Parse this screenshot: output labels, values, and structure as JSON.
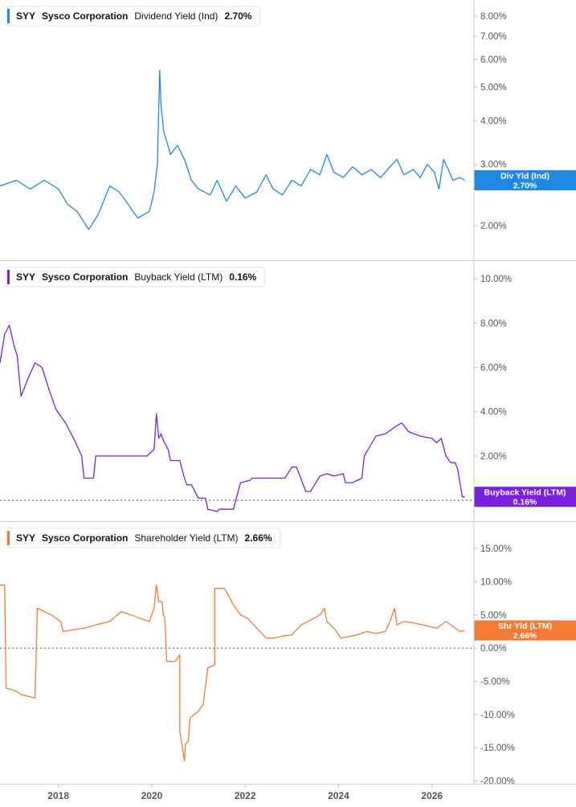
{
  "chart_data": [
    {
      "type": "line",
      "legend": {
        "ticker": "SYY",
        "company": "Sysco Corporation",
        "metric": "Dividend Yield (Ind)",
        "value": "2.70%"
      },
      "color": "#1e88e5",
      "yscale": "log",
      "ylim": [
        1.6,
        8.9
      ],
      "ytick_values": [
        2,
        3,
        4,
        5,
        6,
        7,
        8
      ],
      "ytick_labels": [
        "2.00%",
        "3.00%",
        "4.00%",
        "5.00%",
        "6.00%",
        "7.00%",
        "8.00%"
      ],
      "tag": {
        "line1": "Div Yld (Ind)",
        "line2": "2.70%"
      },
      "reference_line": null,
      "x": [
        2016.75,
        2017.1,
        2017.4,
        2017.7,
        2018.0,
        2018.2,
        2018.4,
        2018.65,
        2018.85,
        2019.1,
        2019.3,
        2019.45,
        2019.7,
        2019.95,
        2020.05,
        2020.12,
        2020.17,
        2020.2,
        2020.26,
        2020.32,
        2020.4,
        2020.55,
        2020.7,
        2020.85,
        2021.0,
        2021.25,
        2021.4,
        2021.6,
        2021.8,
        2022.0,
        2022.25,
        2022.45,
        2022.6,
        2022.8,
        2023.0,
        2023.2,
        2023.4,
        2023.6,
        2023.75,
        2023.9,
        2024.1,
        2024.3,
        2024.5,
        2024.7,
        2024.9,
        2025.1,
        2025.25,
        2025.4,
        2025.6,
        2025.75,
        2025.9,
        2026.05,
        2026.15,
        2026.25,
        2026.35,
        2026.45,
        2026.6,
        2026.7
      ],
      "y": [
        2.6,
        2.7,
        2.55,
        2.7,
        2.55,
        2.3,
        2.2,
        1.95,
        2.15,
        2.6,
        2.5,
        2.35,
        2.1,
        2.2,
        2.5,
        3.0,
        5.6,
        4.4,
        3.7,
        3.5,
        3.2,
        3.4,
        3.1,
        2.7,
        2.55,
        2.45,
        2.7,
        2.35,
        2.6,
        2.4,
        2.5,
        2.8,
        2.55,
        2.45,
        2.7,
        2.6,
        2.9,
        2.8,
        3.2,
        2.85,
        2.75,
        2.95,
        2.8,
        2.9,
        2.75,
        2.95,
        3.1,
        2.8,
        2.9,
        2.75,
        3.0,
        2.85,
        2.55,
        3.1,
        2.9,
        2.7,
        2.75,
        2.7
      ]
    },
    {
      "type": "line",
      "legend": {
        "ticker": "SYY",
        "company": "Sysco Corporation",
        "metric": "Buyback Yield (LTM)",
        "value": "0.16%"
      },
      "color": "#7b1fe0",
      "yscale": "linear",
      "ylim": [
        -0.9,
        10.8
      ],
      "ytick_values": [
        2,
        4,
        6,
        8,
        10
      ],
      "ytick_labels": [
        "2.00%",
        "4.00%",
        "6.00%",
        "8.00%",
        "10.00%"
      ],
      "tag": {
        "line1": "Buyback Yield (LTM)",
        "line2": "0.16%"
      },
      "reference_line": 0,
      "x": [
        2016.75,
        2016.85,
        2016.95,
        2017.05,
        2017.12,
        2017.2,
        2017.35,
        2017.5,
        2017.65,
        2017.8,
        2017.95,
        2018.15,
        2018.35,
        2018.5,
        2018.55,
        2018.75,
        2018.8,
        2019.3,
        2019.55,
        2019.75,
        2019.9,
        2020.05,
        2020.1,
        2020.15,
        2020.2,
        2020.25,
        2020.35,
        2020.4,
        2020.6,
        2020.7,
        2020.75,
        2020.85,
        2021.0,
        2021.15,
        2021.2,
        2021.4,
        2021.45,
        2021.75,
        2021.9,
        2022.1,
        2022.15,
        2022.55,
        2022.8,
        2022.85,
        2023.0,
        2023.1,
        2023.3,
        2023.4,
        2023.6,
        2023.75,
        2023.9,
        2024.1,
        2024.15,
        2024.3,
        2024.5,
        2024.55,
        2024.8,
        2025.0,
        2025.2,
        2025.35,
        2025.5,
        2025.75,
        2026.0,
        2026.1,
        2026.2,
        2026.3,
        2026.4,
        2026.5,
        2026.55,
        2026.65,
        2026.7
      ],
      "y": [
        6.2,
        7.5,
        7.9,
        7.0,
        6.5,
        4.7,
        5.5,
        6.2,
        6.0,
        5.0,
        4.1,
        3.5,
        2.7,
        2.0,
        1.0,
        1.0,
        2.0,
        2.0,
        2.0,
        2.0,
        2.0,
        2.3,
        3.9,
        2.8,
        3.0,
        2.7,
        2.3,
        1.8,
        1.8,
        1.0,
        0.7,
        0.7,
        0.1,
        0.1,
        -0.4,
        -0.5,
        -0.4,
        -0.4,
        0.8,
        0.9,
        1.0,
        1.0,
        1.0,
        1.0,
        1.5,
        1.5,
        0.4,
        0.4,
        1.1,
        1.2,
        1.1,
        1.2,
        0.8,
        0.8,
        1.0,
        2.0,
        2.9,
        3.0,
        3.3,
        3.5,
        3.1,
        2.9,
        2.8,
        2.6,
        2.8,
        2.0,
        1.7,
        1.7,
        1.4,
        0.16,
        0.16
      ]
    },
    {
      "type": "line",
      "legend": {
        "ticker": "SYY",
        "company": "Sysco Corporation",
        "metric": "Shareholder Yield (LTM)",
        "value": "2.66%"
      },
      "color": "#f57a35",
      "yscale": "linear",
      "ylim": [
        -20.3,
        19.0
      ],
      "ytick_values": [
        -20,
        -15,
        -10,
        -5,
        0,
        5,
        10,
        15
      ],
      "ytick_labels": [
        "-20.00%",
        "-15.00%",
        "-10.00%",
        "-5.00%",
        "0.00%",
        "5.00%",
        "10.00%",
        "15.00%"
      ],
      "tag": {
        "line1": "Shr Yld (LTM)",
        "line2": "2.66%"
      },
      "reference_line": 0,
      "x": [
        2016.75,
        2016.85,
        2016.88,
        2017.1,
        2017.2,
        2017.5,
        2017.55,
        2017.85,
        2018.05,
        2018.1,
        2018.35,
        2018.55,
        2018.8,
        2019.1,
        2019.35,
        2019.55,
        2019.95,
        2020.05,
        2020.1,
        2020.15,
        2020.22,
        2020.25,
        2020.28,
        2020.32,
        2020.5,
        2020.6,
        2020.6,
        2020.7,
        2020.72,
        2020.78,
        2020.82,
        2021.0,
        2021.1,
        2021.2,
        2021.35,
        2021.35,
        2021.55,
        2021.6,
        2021.75,
        2021.9,
        2022.05,
        2022.25,
        2022.45,
        2022.6,
        2022.8,
        2023.0,
        2023.2,
        2023.4,
        2023.6,
        2023.7,
        2023.75,
        2023.9,
        2024.05,
        2024.4,
        2024.6,
        2024.8,
        2025.0,
        2025.1,
        2025.2,
        2025.25,
        2025.4,
        2025.6,
        2025.8,
        2026.1,
        2026.3,
        2026.5,
        2026.6,
        2026.7
      ],
      "y": [
        9.5,
        9.5,
        -6.0,
        -6.5,
        -7.0,
        -7.5,
        6.0,
        5.0,
        4.0,
        2.5,
        2.8,
        3.0,
        3.5,
        4.0,
        5.5,
        5.0,
        4.0,
        6.0,
        9.5,
        7.0,
        7.0,
        5.0,
        4.5,
        -2.0,
        -2.0,
        -1.0,
        -12.5,
        -17.0,
        -14.5,
        -14.0,
        -10.5,
        -9.5,
        -8.5,
        -3.0,
        -2.5,
        9.0,
        9.0,
        8.5,
        6.5,
        5.0,
        4.5,
        3.0,
        1.5,
        1.5,
        1.8,
        2.0,
        3.5,
        4.2,
        5.0,
        6.0,
        4.0,
        3.0,
        1.5,
        2.0,
        2.5,
        2.2,
        2.5,
        4.0,
        6.0,
        3.5,
        4.0,
        3.8,
        3.5,
        3.0,
        4.0,
        3.0,
        2.5,
        2.66
      ]
    }
  ],
  "x_axis": {
    "ticks": [
      2018,
      2020,
      2022,
      2024,
      2026
    ],
    "labels": [
      "2018",
      "2020",
      "2022",
      "2024",
      "2026"
    ],
    "range": [
      2016.75,
      2026.9
    ]
  },
  "grid": false
}
